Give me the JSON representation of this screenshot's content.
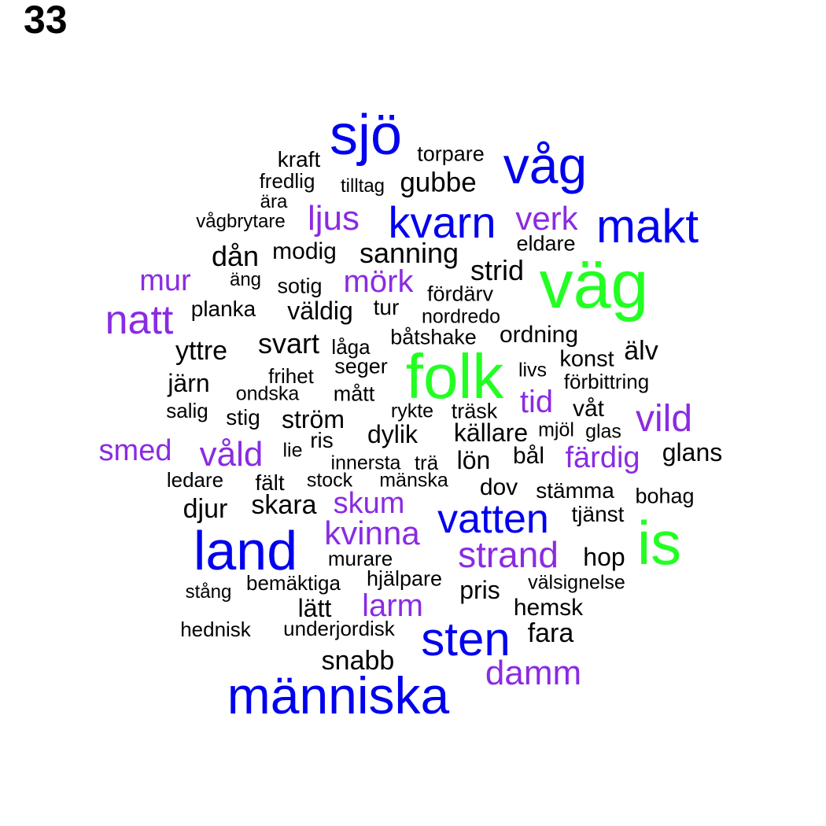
{
  "panel_label": "33",
  "colors": {
    "green": "#22ff22",
    "blue": "#0000ee",
    "purple": "#8a2be2",
    "black": "#000000"
  },
  "words": [
    {
      "text": "sjö",
      "color": "blue"
    },
    {
      "text": "våg",
      "color": "blue"
    },
    {
      "text": "kraft",
      "color": "black"
    },
    {
      "text": "torpare",
      "color": "black"
    },
    {
      "text": "fredlig",
      "color": "black"
    },
    {
      "text": "tilltag",
      "color": "black"
    },
    {
      "text": "gubbe",
      "color": "black"
    },
    {
      "text": "ära",
      "color": "black"
    },
    {
      "text": "vågbrytare",
      "color": "black"
    },
    {
      "text": "ljus",
      "color": "purple"
    },
    {
      "text": "kvarn",
      "color": "blue"
    },
    {
      "text": "verk",
      "color": "purple"
    },
    {
      "text": "makt",
      "color": "blue"
    },
    {
      "text": "eldare",
      "color": "black"
    },
    {
      "text": "dån",
      "color": "black"
    },
    {
      "text": "modig",
      "color": "black"
    },
    {
      "text": "sanning",
      "color": "black"
    },
    {
      "text": "strid",
      "color": "black"
    },
    {
      "text": "väg",
      "color": "green"
    },
    {
      "text": "mur",
      "color": "purple"
    },
    {
      "text": "äng",
      "color": "black"
    },
    {
      "text": "sotig",
      "color": "black"
    },
    {
      "text": "mörk",
      "color": "purple"
    },
    {
      "text": "fördärv",
      "color": "black"
    },
    {
      "text": "natt",
      "color": "purple"
    },
    {
      "text": "planka",
      "color": "black"
    },
    {
      "text": "väldig",
      "color": "black"
    },
    {
      "text": "tur",
      "color": "black"
    },
    {
      "text": "nordredo",
      "color": "black"
    },
    {
      "text": "ordning",
      "color": "black"
    },
    {
      "text": "svart",
      "color": "black"
    },
    {
      "text": "låga",
      "color": "black"
    },
    {
      "text": "båtshake",
      "color": "black"
    },
    {
      "text": "yttre",
      "color": "black"
    },
    {
      "text": "älv",
      "color": "black"
    },
    {
      "text": "konst",
      "color": "black"
    },
    {
      "text": "folk",
      "color": "green"
    },
    {
      "text": "seger",
      "color": "black"
    },
    {
      "text": "frihet",
      "color": "black"
    },
    {
      "text": "livs",
      "color": "black"
    },
    {
      "text": "järn",
      "color": "black"
    },
    {
      "text": "förbittring",
      "color": "black"
    },
    {
      "text": "ondska",
      "color": "black"
    },
    {
      "text": "mått",
      "color": "black"
    },
    {
      "text": "tid",
      "color": "purple"
    },
    {
      "text": "salig",
      "color": "black"
    },
    {
      "text": "våt",
      "color": "black"
    },
    {
      "text": "rykte",
      "color": "black"
    },
    {
      "text": "träsk",
      "color": "black"
    },
    {
      "text": "stig",
      "color": "black"
    },
    {
      "text": "ström",
      "color": "black"
    },
    {
      "text": "vild",
      "color": "purple"
    },
    {
      "text": "dylik",
      "color": "black"
    },
    {
      "text": "källare",
      "color": "black"
    },
    {
      "text": "mjöl",
      "color": "black"
    },
    {
      "text": "glas",
      "color": "black"
    },
    {
      "text": "ris",
      "color": "black"
    },
    {
      "text": "smed",
      "color": "purple"
    },
    {
      "text": "våld",
      "color": "purple"
    },
    {
      "text": "lie",
      "color": "black"
    },
    {
      "text": "glans",
      "color": "black"
    },
    {
      "text": "bål",
      "color": "black"
    },
    {
      "text": "färdig",
      "color": "purple"
    },
    {
      "text": "lön",
      "color": "black"
    },
    {
      "text": "innersta",
      "color": "black"
    },
    {
      "text": "trä",
      "color": "black"
    },
    {
      "text": "ledare",
      "color": "black"
    },
    {
      "text": "fält",
      "color": "black"
    },
    {
      "text": "stock",
      "color": "black"
    },
    {
      "text": "mänska",
      "color": "black"
    },
    {
      "text": "dov",
      "color": "black"
    },
    {
      "text": "stämma",
      "color": "black"
    },
    {
      "text": "bohag",
      "color": "black"
    },
    {
      "text": "skara",
      "color": "black"
    },
    {
      "text": "skum",
      "color": "purple"
    },
    {
      "text": "djur",
      "color": "black"
    },
    {
      "text": "vatten",
      "color": "blue"
    },
    {
      "text": "tjänst",
      "color": "black"
    },
    {
      "text": "is",
      "color": "green"
    },
    {
      "text": "land",
      "color": "blue"
    },
    {
      "text": "kvinna",
      "color": "purple"
    },
    {
      "text": "strand",
      "color": "purple"
    },
    {
      "text": "hop",
      "color": "black"
    },
    {
      "text": "murare",
      "color": "black"
    },
    {
      "text": "hjälpare",
      "color": "black"
    },
    {
      "text": "bemäktiga",
      "color": "black"
    },
    {
      "text": "välsignelse",
      "color": "black"
    },
    {
      "text": "stång",
      "color": "black"
    },
    {
      "text": "pris",
      "color": "black"
    },
    {
      "text": "lätt",
      "color": "black"
    },
    {
      "text": "larm",
      "color": "purple"
    },
    {
      "text": "hemsk",
      "color": "black"
    },
    {
      "text": "hednisk",
      "color": "black"
    },
    {
      "text": "underjordisk",
      "color": "black"
    },
    {
      "text": "fara",
      "color": "black"
    },
    {
      "text": "sten",
      "color": "blue"
    },
    {
      "text": "snabb",
      "color": "black"
    },
    {
      "text": "damm",
      "color": "purple"
    },
    {
      "text": "människa",
      "color": "blue"
    }
  ]
}
